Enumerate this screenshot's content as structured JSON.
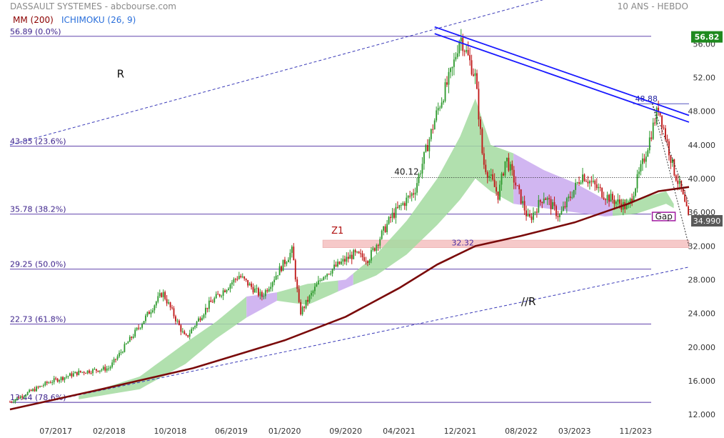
{
  "header": {
    "title": "DASSAULT SYSTEMES - abcbourse.com",
    "period": "10 ANS - HEBDO",
    "legend": [
      {
        "label": "MM (200)",
        "color": "#8b0000"
      },
      {
        "label": "ICHIMOKU (26, 9)",
        "color": "#2a6fdb"
      }
    ]
  },
  "chart_data": {
    "type": "candlestick",
    "ylim": [
      11.5,
      59.5
    ],
    "x_range": [
      "2017-01",
      "2024-06"
    ],
    "y_ticks": [
      "12.000",
      "16.000",
      "20.000",
      "24.000",
      "28.000",
      "32.000",
      "36.000",
      "40.000",
      "44.000",
      "48.000",
      "52.00",
      "56.00"
    ],
    "x_ticks": [
      {
        "label": "07/2017",
        "date": "2017-07"
      },
      {
        "label": "02/2018",
        "date": "2018-02"
      },
      {
        "label": "10/2018",
        "date": "2018-10"
      },
      {
        "label": "06/2019",
        "date": "2019-06"
      },
      {
        "label": "01/2020",
        "date": "2020-01"
      },
      {
        "label": "09/2020",
        "date": "2020-09"
      },
      {
        "label": "04/2021",
        "date": "2021-04"
      },
      {
        "label": "12/2021",
        "date": "2021-12"
      },
      {
        "label": "08/2022",
        "date": "2022-08"
      },
      {
        "label": "03/2023",
        "date": "2023-03"
      },
      {
        "label": "11/2023",
        "date": "2023-11"
      }
    ],
    "fib_levels": [
      {
        "label": "56.89  (0.0%)",
        "value": 56.89
      },
      {
        "label": "43.85  (23.6%)",
        "value": 43.85
      },
      {
        "label": "35.78  (38.2%)",
        "value": 35.78
      },
      {
        "label": "29.25  (50.0%)",
        "value": 29.25
      },
      {
        "label": "22.73  (61.8%)",
        "value": 22.73
      },
      {
        "label": "13.44  (78.6%)",
        "value": 13.44
      }
    ],
    "price_key_points": [
      [
        "2017-01",
        13.5
      ],
      [
        "2017-06",
        15.8
      ],
      [
        "2017-10",
        17.0
      ],
      [
        "2018-02",
        17.5
      ],
      [
        "2018-06",
        22.5
      ],
      [
        "2018-09",
        26.5
      ],
      [
        "2018-12",
        21.0
      ],
      [
        "2019-03",
        25.0
      ],
      [
        "2019-07",
        28.5
      ],
      [
        "2019-10",
        26.0
      ],
      [
        "2020-02",
        31.5
      ],
      [
        "2020-03",
        24.0
      ],
      [
        "2020-06",
        28.5
      ],
      [
        "2020-10",
        31.0
      ],
      [
        "2020-12",
        30.5
      ],
      [
        "2021-03",
        35.5
      ],
      [
        "2021-06",
        38.5
      ],
      [
        "2021-09",
        48.0
      ],
      [
        "2021-11",
        53.0
      ],
      [
        "2021-12",
        57.0
      ],
      [
        "2022-02",
        52.0
      ],
      [
        "2022-03",
        42.0
      ],
      [
        "2022-05",
        38.0
      ],
      [
        "2022-06",
        42.5
      ],
      [
        "2022-09",
        35.0
      ],
      [
        "2022-11",
        38.0
      ],
      [
        "2023-01",
        35.5
      ],
      [
        "2023-04",
        40.5
      ],
      [
        "2023-07",
        38.0
      ],
      [
        "2023-10",
        36.5
      ],
      [
        "2023-12",
        42.0
      ],
      [
        "2024-02",
        48.5
      ],
      [
        "2024-04",
        41.0
      ],
      [
        "2024-05",
        38.5
      ],
      [
        "2024-06",
        35.0
      ]
    ],
    "ma200": [
      [
        "2017-01",
        12.6
      ],
      [
        "2018-01",
        15.0
      ],
      [
        "2019-01",
        17.5
      ],
      [
        "2020-01",
        20.8
      ],
      [
        "2020-09",
        23.6
      ],
      [
        "2021-04",
        27.0
      ],
      [
        "2021-09",
        29.8
      ],
      [
        "2022-02",
        32.0
      ],
      [
        "2022-08",
        33.2
      ],
      [
        "2023-03",
        34.8
      ],
      [
        "2023-10",
        37.0
      ],
      [
        "2024-02",
        38.5
      ],
      [
        "2024-06",
        39.0
      ]
    ],
    "cloud_upper": [
      [
        "2017-10",
        14.2
      ],
      [
        "2018-06",
        16.5
      ],
      [
        "2018-12",
        20.5
      ],
      [
        "2019-04",
        23.0
      ],
      [
        "2019-08",
        26.0
      ],
      [
        "2019-12",
        26.5
      ],
      [
        "2020-04",
        27.5
      ],
      [
        "2020-09",
        28.0
      ],
      [
        "2021-01",
        31.0
      ],
      [
        "2021-05",
        35.0
      ],
      [
        "2021-09",
        40.0
      ],
      [
        "2021-12",
        45.0
      ],
      [
        "2022-02",
        49.5
      ],
      [
        "2022-04",
        44.0
      ],
      [
        "2022-07",
        43.0
      ],
      [
        "2022-11",
        41.0
      ],
      [
        "2023-03",
        39.5
      ],
      [
        "2023-07",
        37.5
      ],
      [
        "2023-11",
        37.5
      ],
      [
        "2024-03",
        38.5
      ],
      [
        "2024-04",
        37.0
      ]
    ],
    "cloud_lower": [
      [
        "2017-10",
        13.8
      ],
      [
        "2018-06",
        15.0
      ],
      [
        "2018-12",
        18.0
      ],
      [
        "2019-04",
        21.0
      ],
      [
        "2019-08",
        23.5
      ],
      [
        "2019-12",
        25.5
      ],
      [
        "2020-04",
        25.0
      ],
      [
        "2020-09",
        27.0
      ],
      [
        "2021-01",
        28.5
      ],
      [
        "2021-05",
        31.0
      ],
      [
        "2021-09",
        34.5
      ],
      [
        "2021-12",
        37.5
      ],
      [
        "2022-02",
        40.0
      ],
      [
        "2022-04",
        38.5
      ],
      [
        "2022-07",
        37.0
      ],
      [
        "2022-11",
        36.5
      ],
      [
        "2023-03",
        36.0
      ],
      [
        "2023-07",
        35.5
      ],
      [
        "2023-11",
        35.8
      ],
      [
        "2024-03",
        37.0
      ],
      [
        "2024-04",
        36.5
      ]
    ],
    "cloud_bearish_segments": [
      {
        "from": "2019-08",
        "to": "2019-11"
      },
      {
        "from": "2020-08",
        "to": "2020-09"
      },
      {
        "from": "2022-07",
        "to": "2023-07"
      }
    ],
    "resistance_channel": {
      "upper": [
        [
          "2021-11",
          58.0
        ],
        [
          "2024-06",
          47.5
        ]
      ],
      "lower": [
        [
          "2021-11",
          57.2
        ],
        [
          "2024-06",
          46.7
        ]
      ]
    },
    "parallel_upper": [
      [
        "2017-01",
        44.0
      ],
      [
        "2023-02",
        62.0
      ]
    ],
    "parallel_lower": [
      [
        "2017-01",
        12.6
      ],
      [
        "2024-06",
        29.5
      ]
    ],
    "dotted_channel": [
      [
        [
          "2024-01",
          48.9
        ],
        [
          "2024-06",
          37.0
        ]
      ],
      [
        [
          "2024-01",
          48.9
        ],
        [
          "2024-06",
          32.0
        ]
      ]
    ],
    "levels": [
      {
        "label": "40.12",
        "value": 40.12,
        "from": "2021-03"
      },
      {
        "label": "48.88",
        "value": 48.88,
        "from": "2024-01"
      },
      {
        "label": "32.32",
        "value": 32.32,
        "from": "2021-12"
      }
    ],
    "zone": {
      "label": "Z1",
      "low": 31.8,
      "high": 32.7,
      "from": "2020-06"
    },
    "gap": {
      "label": "Gap",
      "low": 35.0,
      "high": 36.0,
      "from": "2024-01",
      "to": "2024-04"
    },
    "annotations": [
      {
        "label": "R",
        "date": "2018-03",
        "value": 52.0
      },
      {
        "label": "//R",
        "date": "2022-08",
        "value": 25.0
      }
    ],
    "last_price": "34.990",
    "last_price_box": "56.82"
  }
}
